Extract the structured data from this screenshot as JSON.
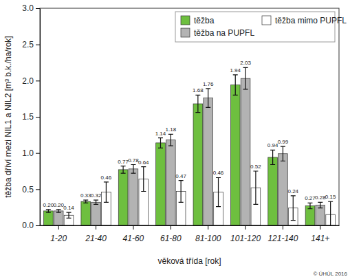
{
  "chart_data": {
    "type": "bar",
    "x_label": "věková třída [rok]",
    "y_label": "těžba dříví mezi NIL1 a NIL2 [m³ b.k./ha/rok]",
    "annotations": [
      "© ÚHÚL 2016"
    ],
    "categories": [
      "1-20",
      "21-40",
      "41-60",
      "61-80",
      "81-100",
      "101-120",
      "121-140",
      "141+"
    ],
    "series": [
      {
        "name": "těžba",
        "color": "#6ebf3f",
        "values": [
          0.2,
          0.33,
          0.77,
          1.14,
          1.68,
          1.94,
          0.94,
          0.27
        ],
        "value_labels": [
          "0.20",
          "0.33",
          "0.77",
          "1.14",
          "1.68",
          "1.94",
          "0.94",
          "0.27"
        ],
        "errors": [
          0.02,
          0.02,
          0.05,
          0.07,
          0.12,
          0.14,
          0.1,
          0.04
        ]
      },
      {
        "name": "těžba na PUPFL",
        "color": "#b3b3b3",
        "values": [
          0.2,
          0.32,
          0.78,
          1.18,
          1.76,
          2.03,
          0.99,
          0.28
        ],
        "value_labels": [
          "0.20",
          "0.32",
          "0.78",
          "1.18",
          "1.76",
          "2.03",
          "0.99",
          "0.28"
        ],
        "errors": [
          0.02,
          0.03,
          0.06,
          0.08,
          0.13,
          0.15,
          0.1,
          0.04
        ]
      },
      {
        "name": "těžba mimo PUPFL",
        "color": "#ffffff",
        "values": [
          0.14,
          0.46,
          0.64,
          0.47,
          0.46,
          0.52,
          0.24,
          0.15
        ],
        "value_labels": [
          "0.14",
          "0.46",
          "0.64",
          "0.47",
          "0.46",
          "0.52",
          "0.24",
          "0.15"
        ],
        "errors": [
          0.04,
          0.14,
          0.17,
          0.15,
          0.2,
          0.23,
          0.17,
          0.18
        ]
      }
    ],
    "ylim": [
      0,
      3
    ],
    "yticks": [
      {
        "value": 0,
        "label": "0.0"
      },
      0.5,
      {
        "value": 1,
        "label": "1.0"
      },
      1.5,
      {
        "value": 2,
        "label": "2.0"
      },
      2.5,
      {
        "value": 3,
        "label": "3.0"
      }
    ],
    "grid": false,
    "legend": "upper right",
    "data_labels": true
  }
}
